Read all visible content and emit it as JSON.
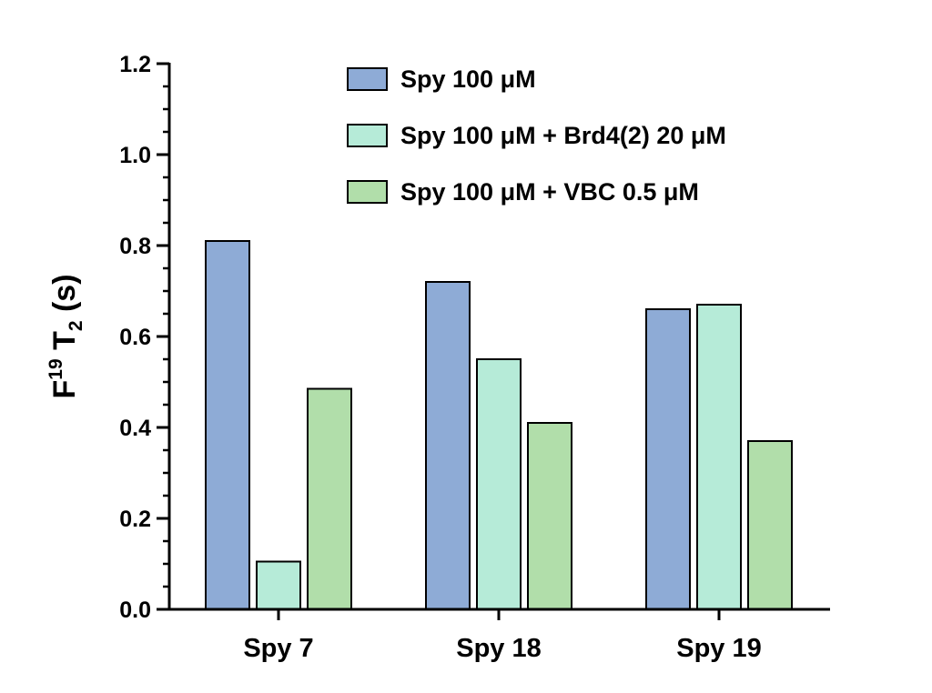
{
  "chart_data": {
    "type": "bar",
    "title": "",
    "xlabel": "",
    "ylabel": {
      "base": "F",
      "sup": "19",
      "mid": " T",
      "sub": "2",
      "end": " (s)"
    },
    "ylim": [
      0,
      1.2
    ],
    "yticks": [
      "0.0",
      "0.2",
      "0.4",
      "0.6",
      "0.8",
      "1.0",
      "1.2"
    ],
    "ytick_values": [
      0,
      0.2,
      0.4,
      0.6,
      0.8,
      1.0,
      1.2
    ],
    "y_minor_step": 0.05,
    "grid": false,
    "legend_position": "top-right",
    "categories": [
      "Spy 7",
      "Spy 18",
      "Spy 19"
    ],
    "series": [
      {
        "name": "Spy 100 μM",
        "color": "#8eabd6",
        "values": [
          0.81,
          0.72,
          0.66
        ]
      },
      {
        "name": "Spy 100 μM + Brd4(2) 20 μM",
        "color": "#b6ebd8",
        "values": [
          0.105,
          0.55,
          0.67
        ]
      },
      {
        "name": "Spy 100 μM + VBC 0.5 μM",
        "color": "#b1deaa",
        "values": [
          0.485,
          0.41,
          0.37
        ]
      }
    ]
  }
}
